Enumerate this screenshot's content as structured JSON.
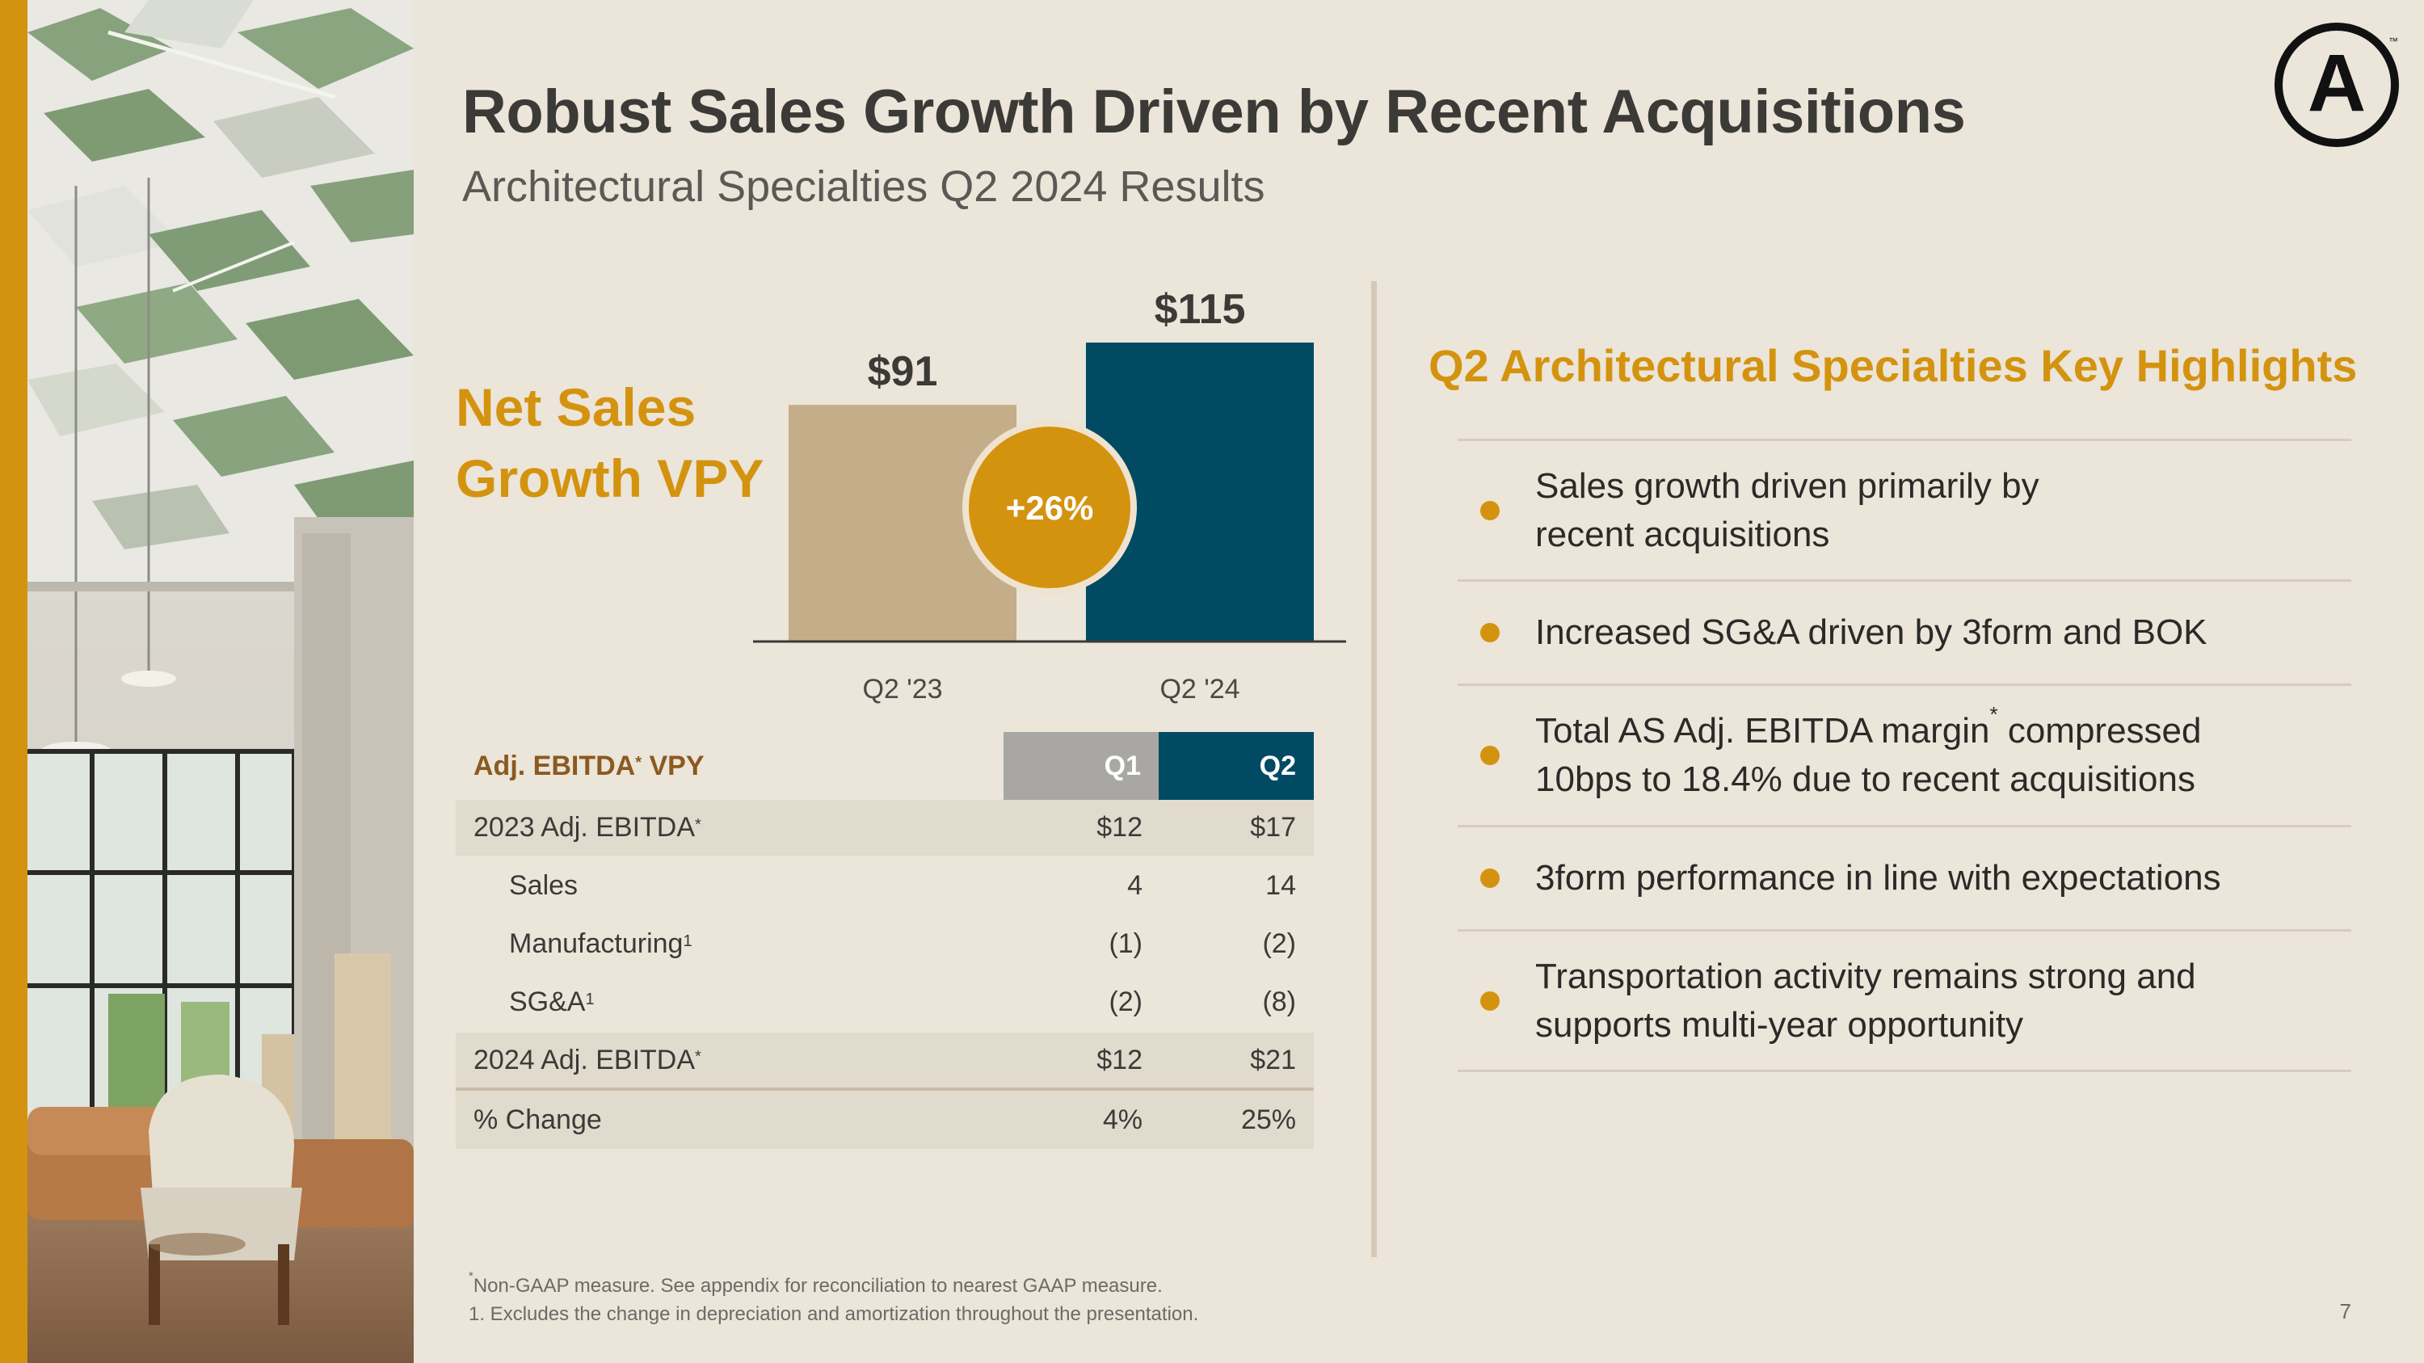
{
  "slide": {
    "title": "Robust Sales Growth Driven by Recent Acquisitions",
    "subtitle": "Architectural Specialties Q2 2024 Results",
    "page_number": "7"
  },
  "net_sales": {
    "line1": "Net Sales",
    "line2": "Growth VPY"
  },
  "chart_data": {
    "type": "bar",
    "title": "Net Sales Growth VPY",
    "categories": [
      "Q2 '23",
      "Q2 '24"
    ],
    "values": [
      91,
      115
    ],
    "value_labels": [
      "$91",
      "$115"
    ],
    "growth_label": "+26%",
    "colors": [
      "#c4ae89",
      "#004b63"
    ],
    "ylim": [
      0,
      115
    ]
  },
  "ebitda_table": {
    "header": "Adj. EBITDA",
    "header_suffix": " VPY",
    "col_q1": "Q1",
    "col_q2": "Q2",
    "rows": [
      {
        "label": "2023 Adj. EBITDA",
        "mark": "*",
        "q1": "$12",
        "q2": "$17"
      },
      {
        "label": "Sales",
        "mark": "",
        "q1": "4",
        "q2": "14"
      },
      {
        "label": "Manufacturing",
        "mark": "1",
        "q1": "(1)",
        "q2": "(2)"
      },
      {
        "label": "SG&A",
        "mark": "1",
        "q1": "(2)",
        "q2": "(8)"
      },
      {
        "label": "2024 Adj. EBITDA",
        "mark": "*",
        "q1": "$12",
        "q2": "$21"
      },
      {
        "label": "% Change",
        "mark": "",
        "q1": "4%",
        "q2": "25%"
      }
    ]
  },
  "highlights": {
    "title": "Q2 Architectural Specialties Key Highlights",
    "items": [
      {
        "line1": "Sales growth driven primarily by",
        "line2": "recent acquisitions"
      },
      {
        "line1": "Increased SG&A driven by 3form and BOK"
      },
      {
        "line1a": "Total AS Adj. EBITDA margin",
        "mark": "*",
        "line1b": " compressed",
        "line2": "10bps to 18.4% due to recent acquisitions"
      },
      {
        "line1": "3form performance in line with expectations"
      },
      {
        "line1": "Transportation activity remains strong and",
        "line2": "supports multi-year opportunity"
      }
    ]
  },
  "footnotes": {
    "mark": "*",
    "note1": "Non-GAAP measure. See appendix for reconciliation to nearest GAAP measure.",
    "note2": "1. Excludes the change in depreciation and amortization throughout the presentation."
  },
  "logo": {
    "letter": "A",
    "trademark": "™"
  },
  "colors": {
    "accent": "#d4930f",
    "navy": "#004b63",
    "tan": "#c4ae89",
    "background": "#ebe5da"
  }
}
